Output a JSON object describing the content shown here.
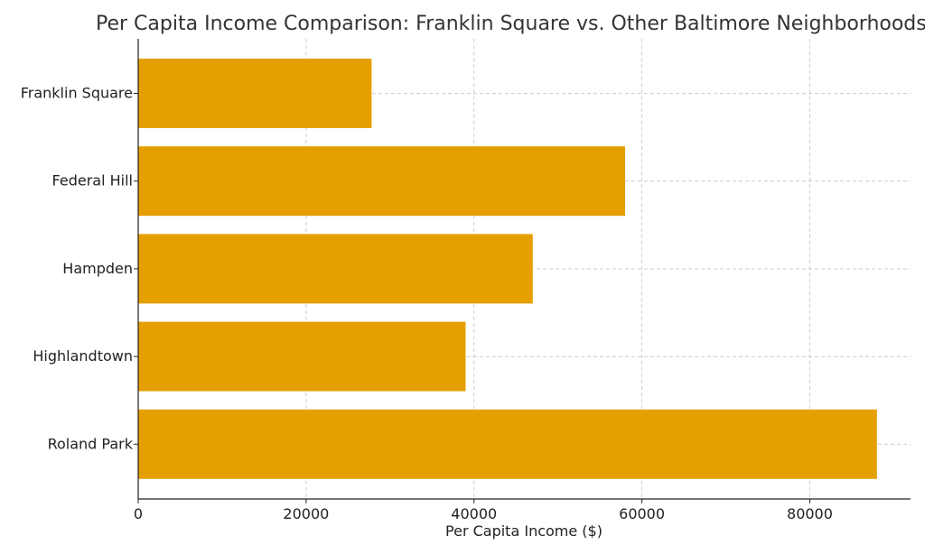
{
  "chart_data": {
    "type": "bar",
    "orientation": "horizontal",
    "title": "Per Capita Income Comparison: Franklin Square vs. Other Baltimore Neighborhoods",
    "xlabel": "Per Capita Income ($)",
    "ylabel": "",
    "categories": [
      "Franklin Square",
      "Federal Hill",
      "Hampden",
      "Highlandtown",
      "Roland Park"
    ],
    "values": [
      27800,
      58000,
      47000,
      39000,
      88000
    ],
    "xlim": [
      0,
      92000
    ],
    "xticks": [
      0,
      20000,
      40000,
      60000,
      80000
    ],
    "bar_color": "#E69F00",
    "grid": true,
    "grid_style": "dashed"
  }
}
